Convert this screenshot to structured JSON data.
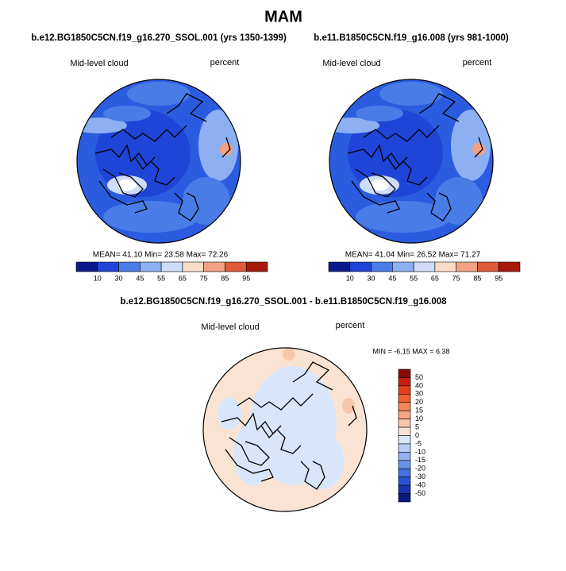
{
  "title": "MAM",
  "panels": [
    {
      "subtitle": "b.e12.BG1850C5CN.f19_g16.270_SSOL.001 (yrs 1350-1399)",
      "left_label": "Mid-level cloud",
      "right_label": "percent",
      "stats": "MEAN=  41.10   Min=  23.58   Max=  72.26",
      "colorbar": {
        "labels": [
          10,
          30,
          45,
          55,
          65,
          75,
          85,
          95
        ],
        "colors": [
          "#0a1a8a",
          "#1f44d8",
          "#4a7ce8",
          "#8cb0f2",
          "#cfdcf7",
          "#f9dcc8",
          "#f2a184",
          "#de5a38",
          "#a8190b"
        ]
      }
    },
    {
      "subtitle": "b.e11.B1850C5CN.f19_g16.008 (yrs 981-1000)",
      "left_label": "Mid-level cloud",
      "right_label": "percent",
      "stats": "MEAN=  41.04   Min=  26.52   Max=  71.27",
      "colorbar": {
        "labels": [
          10,
          30,
          45,
          55,
          65,
          75,
          85,
          95
        ],
        "colors": [
          "#0a1a8a",
          "#1f44d8",
          "#4a7ce8",
          "#8cb0f2",
          "#cfdcf7",
          "#f9dcc8",
          "#f2a184",
          "#de5a38",
          "#a8190b"
        ]
      }
    }
  ],
  "difference": {
    "subtitle": "b.e12.BG1850C5CN.f19_g16.270_SSOL.001 - b.e11.B1850C5CN.f19_g16.008",
    "left_label": "Mid-level cloud",
    "right_label": "percent",
    "stats": "MIN =  -6.15 MAX =   6.38",
    "colorbar": {
      "labels": [
        50,
        40,
        30,
        20,
        15,
        10,
        5,
        0,
        -5,
        -10,
        -15,
        -20,
        -30,
        -40,
        -50
      ],
      "colors": [
        "#8a0a05",
        "#c4200e",
        "#e4401c",
        "#f06030",
        "#f4845a",
        "#f7a584",
        "#f9c6ac",
        "#fbe3d3",
        "#d8e6fb",
        "#b8cef6",
        "#92b2f1",
        "#6a92ea",
        "#4472e2",
        "#2a52d4",
        "#1834b0",
        "#0a1880"
      ]
    }
  }
}
